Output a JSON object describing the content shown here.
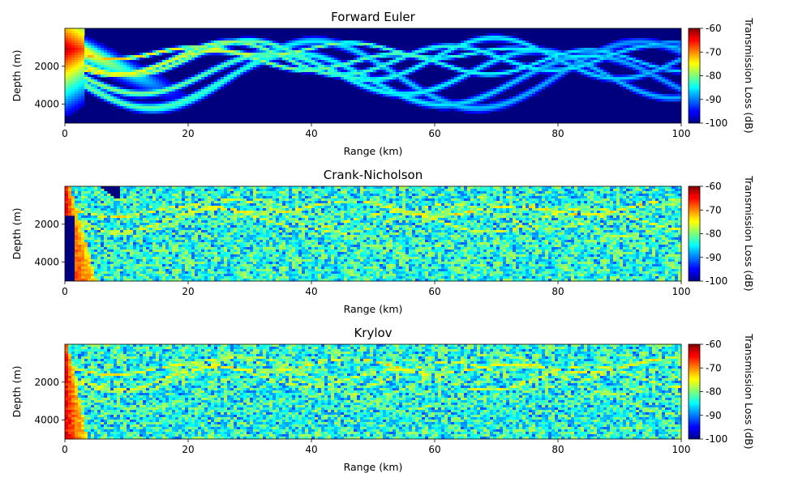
{
  "chart_data": [
    {
      "type": "heatmap",
      "title": "Forward Euler",
      "xlabel": "Range (km)",
      "ylabel": "Depth (m)",
      "xlim": [
        0,
        100
      ],
      "ylim": [
        5000,
        0
      ],
      "xticks": [
        0,
        20,
        40,
        60,
        80,
        100
      ],
      "yticks": [
        2000,
        4000
      ],
      "colorbar": {
        "label": "Transmission Loss (dB)",
        "ticks": [
          -60,
          -70,
          -80,
          -90,
          -100
        ],
        "range": [
          -100,
          -60
        ],
        "colormap": "jet"
      },
      "pattern": "smooth"
    },
    {
      "type": "heatmap",
      "title": "Crank-Nicholson",
      "xlabel": "Range (km)",
      "ylabel": "Depth (m)",
      "xlim": [
        0,
        100
      ],
      "ylim": [
        5000,
        0
      ],
      "xticks": [
        0,
        20,
        40,
        60,
        80,
        100
      ],
      "yticks": [
        2000,
        4000
      ],
      "colorbar": {
        "label": "Transmission Loss (dB)",
        "ticks": [
          -60,
          -70,
          -80,
          -90,
          -100
        ],
        "range": [
          -100,
          -60
        ],
        "colormap": "jet"
      },
      "pattern": "noisy"
    },
    {
      "type": "heatmap",
      "title": "Krylov",
      "xlabel": "Range (km)",
      "ylabel": "Depth (m)",
      "xlim": [
        0,
        100
      ],
      "ylim": [
        5000,
        0
      ],
      "xticks": [
        0,
        20,
        40,
        60,
        80,
        100
      ],
      "yticks": [
        2000,
        4000
      ],
      "colorbar": {
        "label": "Transmission Loss (dB)",
        "ticks": [
          -60,
          -70,
          -80,
          -90,
          -100
        ],
        "range": [
          -100,
          -60
        ],
        "colormap": "jet"
      },
      "pattern": "noisy"
    }
  ]
}
